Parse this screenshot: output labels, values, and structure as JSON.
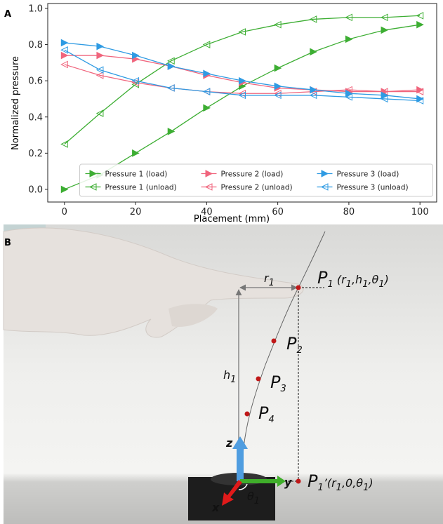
{
  "chart_data": {
    "type": "line",
    "panel_label": "A",
    "x_label": "Placement (mm)",
    "y_label": "Normalized pressure",
    "x": [
      0,
      10,
      20,
      30,
      40,
      50,
      60,
      70,
      80,
      90,
      100
    ],
    "series": [
      {
        "name": "Pressure 1 (load)",
        "color": "#3dae33",
        "marker": "filled-right-triangle",
        "values": [
          0.0,
          0.08,
          0.2,
          0.32,
          0.45,
          0.57,
          0.67,
          0.76,
          0.83,
          0.88,
          0.91
        ]
      },
      {
        "name": "Pressure 1 (unload)",
        "color": "#3dae33",
        "marker": "open-left-triangle",
        "values": [
          0.25,
          0.42,
          0.58,
          0.71,
          0.8,
          0.87,
          0.91,
          0.94,
          0.95,
          0.95,
          0.96
        ]
      },
      {
        "name": "Pressure 2 (load)",
        "color": "#f0657d",
        "marker": "filled-right-triangle",
        "values": [
          0.74,
          0.74,
          0.72,
          0.68,
          0.63,
          0.59,
          0.56,
          0.55,
          0.54,
          0.54,
          0.55
        ]
      },
      {
        "name": "Pressure 2 (unload)",
        "color": "#f0657d",
        "marker": "open-left-triangle",
        "values": [
          0.69,
          0.63,
          0.59,
          0.56,
          0.54,
          0.53,
          0.53,
          0.54,
          0.55,
          0.54,
          0.54
        ]
      },
      {
        "name": "Pressure 3 (load)",
        "color": "#2f9be3",
        "marker": "filled-right-triangle",
        "values": [
          0.81,
          0.79,
          0.74,
          0.68,
          0.64,
          0.6,
          0.57,
          0.55,
          0.53,
          0.52,
          0.5
        ]
      },
      {
        "name": "Pressure 3 (unload)",
        "color": "#2f9be3",
        "marker": "open-left-triangle",
        "values": [
          0.77,
          0.66,
          0.6,
          0.56,
          0.54,
          0.52,
          0.52,
          0.52,
          0.51,
          0.5,
          0.49
        ]
      }
    ],
    "xlim": [
      -4.7,
      104.7
    ],
    "ylim": [
      -0.07,
      1.027
    ],
    "xticks": [
      0,
      20,
      40,
      60,
      80,
      100
    ],
    "yticks": [
      {
        "value": 0,
        "label": "0.0"
      },
      0.2,
      0.4,
      0.6,
      0.8,
      {
        "value": 1,
        "label": "1.0"
      }
    ],
    "legend": "lower center",
    "legend_columns": 3
  },
  "photo": {
    "panel_label": "B",
    "annotations": [
      [
        {
          "text": "P"
        },
        {
          "text": "1",
          "sub": true
        },
        {
          "text": " (r",
          "small": true
        },
        {
          "text": "1",
          "sub": true
        },
        {
          "text": ",h",
          "small": true
        },
        {
          "text": "1",
          "sub": true
        },
        {
          "text": ",θ",
          "small": true
        },
        {
          "text": "1",
          "sub": true
        },
        {
          "text": ")",
          "small": true
        }
      ],
      [
        {
          "text": "r",
          "small": true
        },
        {
          "text": "1",
          "sub": true
        }
      ],
      [
        {
          "text": "P"
        },
        {
          "text": "2",
          "sub": true
        }
      ],
      [
        {
          "text": "P"
        },
        {
          "text": "3",
          "sub": true
        }
      ],
      [
        {
          "text": "P"
        },
        {
          "text": "4",
          "sub": true
        }
      ],
      [
        {
          "text": "h",
          "small": true
        },
        {
          "text": "1",
          "sub": true
        }
      ],
      [
        {
          "text": "z",
          "small": true
        }
      ],
      [
        {
          "text": "y",
          "small": true
        }
      ],
      [
        {
          "text": "x",
          "small": true
        }
      ],
      [
        {
          "text": "θ",
          "small": true
        },
        {
          "text": "1",
          "sub": true
        }
      ],
      [
        {
          "text": "P"
        },
        {
          "text": "1",
          "sub": true
        },
        {
          "text": "’(r",
          "small": true
        },
        {
          "text": "1",
          "sub": true
        },
        {
          "text": ",0,θ",
          "small": true
        },
        {
          "text": "1",
          "sub": true
        },
        {
          "text": ")",
          "small": true
        }
      ]
    ]
  }
}
